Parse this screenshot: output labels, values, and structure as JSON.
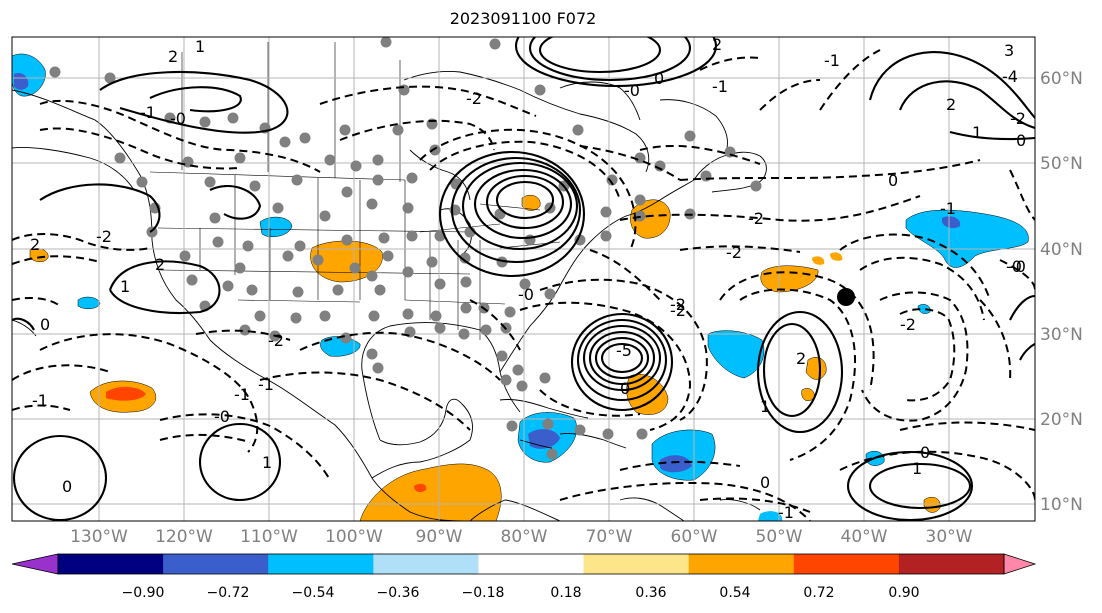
{
  "title": "2023091100 F072",
  "map": {
    "lon_labels": [
      "130°W",
      "120°W",
      "110°W",
      "100°W",
      "90°W",
      "80°W",
      "70°W",
      "60°W",
      "50°W",
      "40°W",
      "30°W"
    ],
    "lat_labels": [
      "60°N",
      "50°N",
      "40°N",
      "30°N",
      "20°N",
      "10°N"
    ],
    "contour_labels": [
      "2",
      "1",
      "-0",
      "-1",
      "-2",
      "-2",
      "0",
      "-2",
      "-0",
      "-1",
      "2",
      "-2",
      "2",
      "1",
      "-0",
      "-1",
      "-2",
      "0",
      "1",
      "-5",
      "-2",
      "-0",
      "0",
      "-1",
      "2",
      "1",
      "0",
      "-1",
      "-1",
      "-2",
      "-0",
      "0",
      "1",
      "2",
      "3",
      "-4",
      "-2",
      "1",
      "0",
      "-0",
      "-1",
      "2",
      "0",
      "-1",
      "-2",
      "0"
    ],
    "colors": {
      "contour": "#000000",
      "state_border": "#000000",
      "grid": "#b4b4b4",
      "dots": "#808080",
      "marker": "#000000"
    }
  },
  "colorbar": {
    "ticks": [
      "−0.90",
      "−0.72",
      "−0.54",
      "−0.36",
      "−0.18",
      "0.18",
      "0.36",
      "0.54",
      "0.72",
      "0.90"
    ],
    "colors": [
      "#9932cc",
      "#000080",
      "#3a5fcd",
      "#00bfff",
      "#b0e0f8",
      "#ffffff",
      "#fde68a",
      "#ffa500",
      "#ff4500",
      "#b22222",
      "#ff88aa"
    ]
  }
}
